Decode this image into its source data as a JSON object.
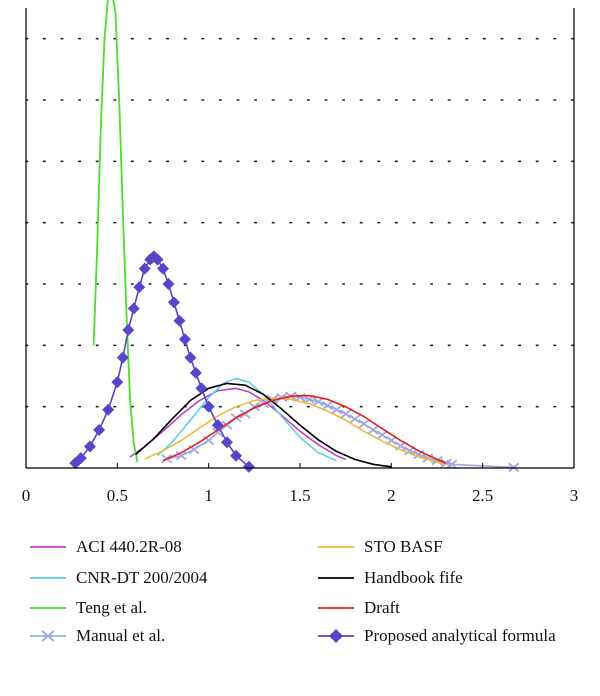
{
  "chart_data": {
    "type": "line",
    "title": "",
    "xlabel": "",
    "ylabel": "",
    "xlim": [
      0,
      3
    ],
    "ylim": [
      0,
      7.5
    ],
    "x_ticks": [
      "0",
      "0.5",
      "1",
      "1.5",
      "2",
      "2.5",
      "3"
    ],
    "x_tick_values": [
      0,
      0.5,
      1,
      1.5,
      2,
      2.5,
      3
    ],
    "grid": "horizontal dotted",
    "legend_placement": "bottom",
    "series": [
      {
        "name": "ACI 440.2R-08",
        "color": "#c040c8",
        "marker": "none",
        "x": [
          0.57,
          0.65,
          0.75,
          0.85,
          0.95,
          1.05,
          1.15,
          1.22,
          1.3,
          1.4,
          1.5,
          1.6,
          1.7,
          1.75
        ],
        "y": [
          0.18,
          0.35,
          0.6,
          0.87,
          1.1,
          1.26,
          1.3,
          1.24,
          1.1,
          0.86,
          0.6,
          0.38,
          0.2,
          0.14
        ]
      },
      {
        "name": "CNR-DT 200/2004",
        "color": "#5cd0e8",
        "marker": "none",
        "x": [
          0.72,
          0.8,
          0.9,
          1.0,
          1.08,
          1.15,
          1.22,
          1.3,
          1.4,
          1.5,
          1.6,
          1.7
        ],
        "y": [
          0.2,
          0.42,
          0.78,
          1.15,
          1.38,
          1.46,
          1.4,
          1.2,
          0.84,
          0.5,
          0.25,
          0.12
        ]
      },
      {
        "name": "Teng et al.",
        "color": "#50dc30",
        "marker": "none",
        "x": [
          0.37,
          0.39,
          0.41,
          0.43,
          0.45,
          0.47,
          0.49,
          0.51,
          0.53,
          0.55,
          0.57,
          0.59,
          0.61
        ],
        "y": [
          2.0,
          3.6,
          5.6,
          7.0,
          7.7,
          7.8,
          7.4,
          6.0,
          4.2,
          2.5,
          1.1,
          0.4,
          0.1
        ]
      },
      {
        "name": "Manual et al.",
        "color": "#a0a8e0",
        "marker": "x",
        "x": [
          0.77,
          0.85,
          0.92,
          1.0,
          1.05,
          1.1,
          1.15,
          1.2,
          1.25,
          1.3,
          1.35,
          1.4,
          1.45,
          1.5,
          1.55,
          1.6,
          1.65,
          1.7,
          1.75,
          1.8,
          1.85,
          1.9,
          1.95,
          2.0,
          2.05,
          2.1,
          2.15,
          2.2,
          2.25,
          2.3,
          2.33,
          2.67
        ],
        "y": [
          0.15,
          0.2,
          0.3,
          0.45,
          0.58,
          0.7,
          0.82,
          0.88,
          1.0,
          1.05,
          1.12,
          1.15,
          1.17,
          1.15,
          1.12,
          1.08,
          1.02,
          0.95,
          0.88,
          0.8,
          0.72,
          0.62,
          0.54,
          0.45,
          0.36,
          0.28,
          0.22,
          0.16,
          0.12,
          0.08,
          0.06,
          0.01
        ]
      },
      {
        "name": "STO BASF",
        "color": "#f0b840",
        "marker": "none",
        "x": [
          0.65,
          0.75,
          0.85,
          0.95,
          1.05,
          1.15,
          1.25,
          1.35,
          1.45,
          1.55,
          1.65,
          1.75,
          1.85,
          1.95,
          2.05,
          2.15,
          2.25,
          2.3
        ],
        "y": [
          0.15,
          0.28,
          0.45,
          0.65,
          0.85,
          1.0,
          1.1,
          1.14,
          1.12,
          1.05,
          0.93,
          0.78,
          0.6,
          0.44,
          0.3,
          0.18,
          0.1,
          0.06
        ]
      },
      {
        "name": "Handbook fife",
        "color": "#000000",
        "marker": "none",
        "x": [
          0.6,
          0.7,
          0.8,
          0.9,
          1.0,
          1.1,
          1.2,
          1.3,
          1.4,
          1.5,
          1.6,
          1.7,
          1.8,
          1.9,
          2.0
        ],
        "y": [
          0.22,
          0.48,
          0.8,
          1.1,
          1.3,
          1.38,
          1.35,
          1.2,
          0.96,
          0.7,
          0.46,
          0.27,
          0.14,
          0.06,
          0.02
        ]
      },
      {
        "name": "Draft",
        "color": "#e02020",
        "marker": "none",
        "x": [
          0.75,
          0.85,
          0.95,
          1.05,
          1.15,
          1.25,
          1.35,
          1.45,
          1.55,
          1.65,
          1.75,
          1.85,
          1.95,
          2.05,
          2.15,
          2.25,
          2.3
        ],
        "y": [
          0.12,
          0.25,
          0.42,
          0.62,
          0.82,
          0.98,
          1.1,
          1.17,
          1.18,
          1.12,
          1.0,
          0.84,
          0.64,
          0.45,
          0.28,
          0.14,
          0.08
        ]
      },
      {
        "name": "Proposed analytical formula",
        "color": "#5846c8",
        "marker": "diamond",
        "x": [
          0.27,
          0.3,
          0.35,
          0.4,
          0.45,
          0.5,
          0.53,
          0.56,
          0.59,
          0.62,
          0.65,
          0.68,
          0.7,
          0.72,
          0.75,
          0.78,
          0.81,
          0.84,
          0.87,
          0.9,
          0.93,
          0.96,
          1.0,
          1.05,
          1.1,
          1.15,
          1.22
        ],
        "y": [
          0.08,
          0.16,
          0.35,
          0.62,
          0.95,
          1.4,
          1.8,
          2.25,
          2.6,
          2.95,
          3.25,
          3.4,
          3.45,
          3.4,
          3.25,
          3.0,
          2.7,
          2.4,
          2.1,
          1.8,
          1.55,
          1.3,
          1.0,
          0.7,
          0.42,
          0.2,
          0.02
        ]
      }
    ]
  }
}
